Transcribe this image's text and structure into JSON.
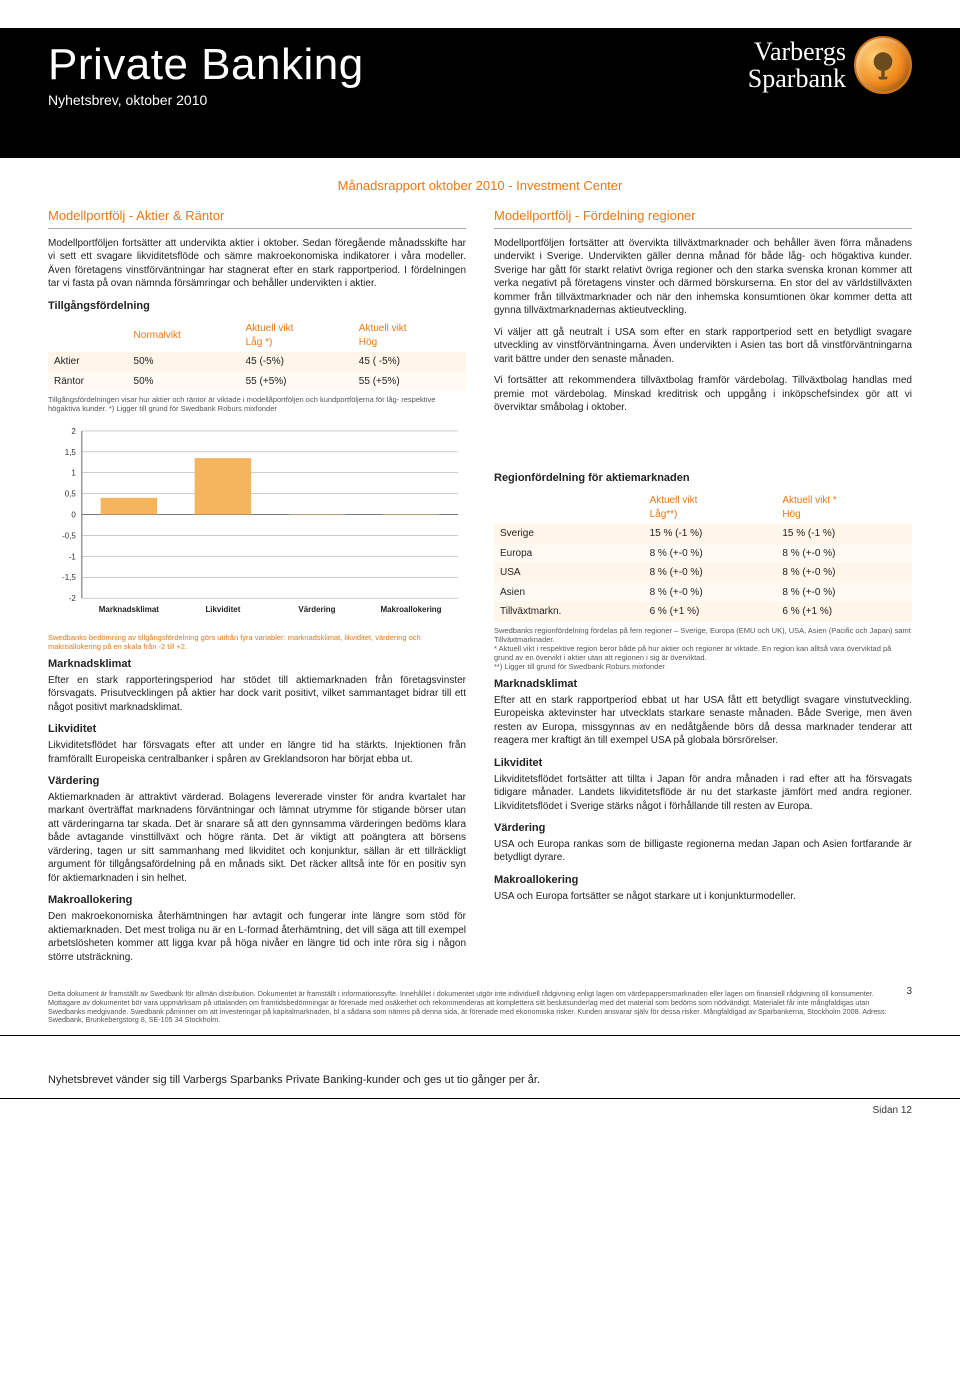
{
  "hero": {
    "title": "Private Banking",
    "subtitle": "Nyhetsbrev, oktober 2010",
    "bank_name_l1": "Varbergs",
    "bank_name_l2": "Sparbank"
  },
  "report_title": "Månadsrapport oktober 2010 - Investment Center",
  "left": {
    "h2": "Modellportfölj - Aktier & Räntor",
    "intro": "Modellportföljen fortsätter att undervikta aktier i oktober. Sedan föregående månadsskifte har vi sett ett svagare likviditetsflöde och sämre makroekonomiska indikatorer i våra modeller. Även företagens vinstförväntningar har stagnerat efter en stark rapportperiod. I fördelningen tar vi fasta på ovan nämnda försämringar och behåller undervikten i aktier.",
    "tgf_title": "Tillgångsfördelning",
    "tgf_table": {
      "headers": [
        "",
        "Normalvikt",
        "Aktuell vikt\nLåg *)",
        "Aktuell vikt\nHög"
      ],
      "rows": [
        [
          "Aktier",
          "50%",
          "45 (-5%)",
          "45 ( -5%)"
        ],
        [
          "Räntor",
          "50%",
          "55 (+5%)",
          "55 (+5%)"
        ]
      ]
    },
    "tgf_note": "Tillgångsfördelningen visar hur aktier och räntor är viktade i modellåportföljen och kundportföljerna för låg- respektive högaktiva kunder. *) Ligger till grund för Swedbank Roburs mixfonder",
    "chart": {
      "type": "bar",
      "categories": [
        "Marknadsklimat",
        "Likviditet",
        "Värdering",
        "Makroallokering"
      ],
      "values": [
        0.4,
        1.35,
        0.0,
        0.0
      ],
      "ylim": [
        -2,
        2
      ],
      "ytick_step": 0.5,
      "bar_color": "#f4b55e",
      "grid_color": "#9a9a9a",
      "axis_color": "#666666",
      "background_color": "#ffffff",
      "label_fontsize": 8,
      "bar_width": 0.6
    },
    "chart_note": "Swedbanks bedömning av tillgångsfördelning görs utifrån fyra variabler: marknadsklimat, likviditet, värdering och makroallokering på en skala från -2 till +2.",
    "sections": [
      {
        "h": "Marknadsklimat",
        "p": "Efter en stark rapporteringsperiod har stödet till aktiemarknaden från företagsvinster försvagats. Prisutvecklingen på aktier har dock varit positivt, vilket sammantaget bidrar till ett något positivt marknadsklimat."
      },
      {
        "h": "Likviditet",
        "p": "Likviditetsflödet har försvagats efter att under en längre tid ha stärkts. Injektionen från framförallt Europeiska centralbanker i spåren av Greklandsoron har börjat ebba ut."
      },
      {
        "h": "Värdering",
        "p": "Aktiemarknaden är attraktivt värderad. Bolagens levererade vinster för andra kvartalet har markant överträffat marknadens förväntningar och lämnat utrymme för stigande börser utan att värderingarna tar skada. Det är snarare så att den gynnsamma värderingen bedöms klara både avtagande vinsttillväxt och högre ränta. Det är viktigt att poängtera att börsens värdering, tagen ur sitt sammanhang med likviditet och konjunktur, sällan är ett tillräckligt argument för tillgångsafördelning på en månads sikt. Det räcker alltså inte för en positiv syn för aktiemarknaden i sin helhet."
      },
      {
        "h": "Makroallokering",
        "p": "Den makroekonomiska återhämtningen har avtagit och fungerar inte längre som stöd för aktiemarknaden. Det mest troliga nu är en L-formad återhämtning, det vill säga att till exempel arbetslösheten kommer att ligga kvar på höga nivåer en längre tid och inte röra sig i någon större utsträckning."
      }
    ]
  },
  "right": {
    "h2": "Modellportfölj - Fördelning regioner",
    "intro": "Modellportföljen fortsätter att övervikta tillväxtmarknader och behåller även förra månadens undervikt i Sverige. Undervikten gäller denna månad för både låg- och högaktiva kunder. Sverige har gått för starkt relativt övriga regioner och den starka svenska kronan kommer att verka negativt på företagens vinster och därmed börskurserna. En stor del av världstillväxten kommer från tillväxtmarknader och när den inhemska konsumtionen ökar kommer detta att gynna tillväxtmarknadernas aktieutveckling.",
    "p2": "Vi väljer att gå neutralt i USA som efter en stark rapportperiod sett en betydligt svagare utveckling av vinstförväntningarna. Även undervikten i Asien tas bort då vinstförväntningarna varit bättre under den senaste månaden.",
    "p3": "Vi fortsätter att rekommendera tillväxtbolag framför värdebolag. Tillväxtbolag handlas med premie mot värdebolag. Minskad kreditrisk och uppgång i inköpschefsindex gör att vi överviktar småbolag i oktober.",
    "region_title": "Regionfördelning för aktiemarknaden",
    "region_table": {
      "headers": [
        "",
        "Aktuell vikt\nLåg**)",
        "Aktuell vikt *\nHög"
      ],
      "rows": [
        [
          "Sverige",
          "15 % (-1 %)",
          "15 % (-1 %)"
        ],
        [
          "Europa",
          "8 % (+-0 %)",
          "8 % (+-0 %)"
        ],
        [
          "USA",
          "8 % (+-0 %)",
          "8 % (+-0 %)"
        ],
        [
          "Asien",
          "8 % (+-0 %)",
          "8 % (+-0 %)"
        ],
        [
          "Tillväxtmarkn.",
          "6 % (+1 %)",
          "6 % (+1 %)"
        ]
      ]
    },
    "region_note": "Swedbanks regionfördelning fördelas på fem regioner – Sverige, Europa (EMU och UK), USA, Asien (Pacific och Japan) samt Tillväxtmarknader.\n* Aktuell vikt i respektive region beror både på hur aktier och regioner är viktade. En region kan alltså vara överviktad på grund av en övervikt i aktier utan att regionen i sig är överviktad.\n**) Ligger till grund för Swedbank Roburs mixfonder",
    "sections": [
      {
        "h": "Marknadsklimat",
        "p": "Efter att en stark rapportperiod ebbat ut har USA fått ett betydligt svagare vinstutveckling. Europeiska aktevinster har utvecklats starkare senaste månaden. Både Sverige, men även resten av Europa, missgynnas av en nedåtgående börs då dessa marknader tenderar att reagera mer kraftigt än till exempel USA på globala börsrörelser."
      },
      {
        "h": "Likviditet",
        "p": "Likviditetsflödet fortsätter att tillta i Japan för andra månaden i rad efter att ha försvagats tidigare månader. Landets likviditetsflöde är nu det starkaste jämfört med andra regioner. Likviditetsflödet i Sverige stärks något i förhållande till resten av Europa."
      },
      {
        "h": "Värdering",
        "p": "USA och Europa rankas som de billigaste regionerna medan Japan och Asien fortfarande är betydligt dyrare."
      },
      {
        "h": "Makroallokering",
        "p": "USA och Europa fortsätter se något starkare ut i konjunkturmodeller."
      }
    ]
  },
  "disclaimer": "Detta dokument är framställt av Swedbank för allmän distribution. Dokumentet är framställt i informationssyfte. Innehållet i dokumentet utgör inte individuell rådgivning enligt lagen om värdepappersmarknaden eller lagen om finansiell rådgivning till konsumenter. Mottagare av dokumentet bör vara uppmärksam på uttalanden om framtidsbedömningar är förenade med osäkerhet och rekommenderas att komplettera sitt beslutsunderlag med det material som bedöms som nödvändigt. Materialet får inte mångfaldigas utan Swedbanks medgivande. Swedbank påminner om att investeringar på kapitalmarknaden, bl a sådana som nämns på denna sida, är förenade med ekonomiska risker. Kunden ansvarar själv för dessa risker. Mångfaldigad av Sparbankerna, Stockholm 2008. Adress: Swedbank, Brunkebergstorg 8, SE-105 34 Stockholm.",
  "page_num_top": "3",
  "bottom_line": "Nyhetsbrevet vänder sig till Varbergs Sparbanks Private Banking-kunder och ges ut tio gånger per år.",
  "page_label": "Sidan 12",
  "colors": {
    "accent": "#e67817",
    "bar": "#f4b55e",
    "row_a": "#fff5e8",
    "row_b": "#fffaf3"
  }
}
